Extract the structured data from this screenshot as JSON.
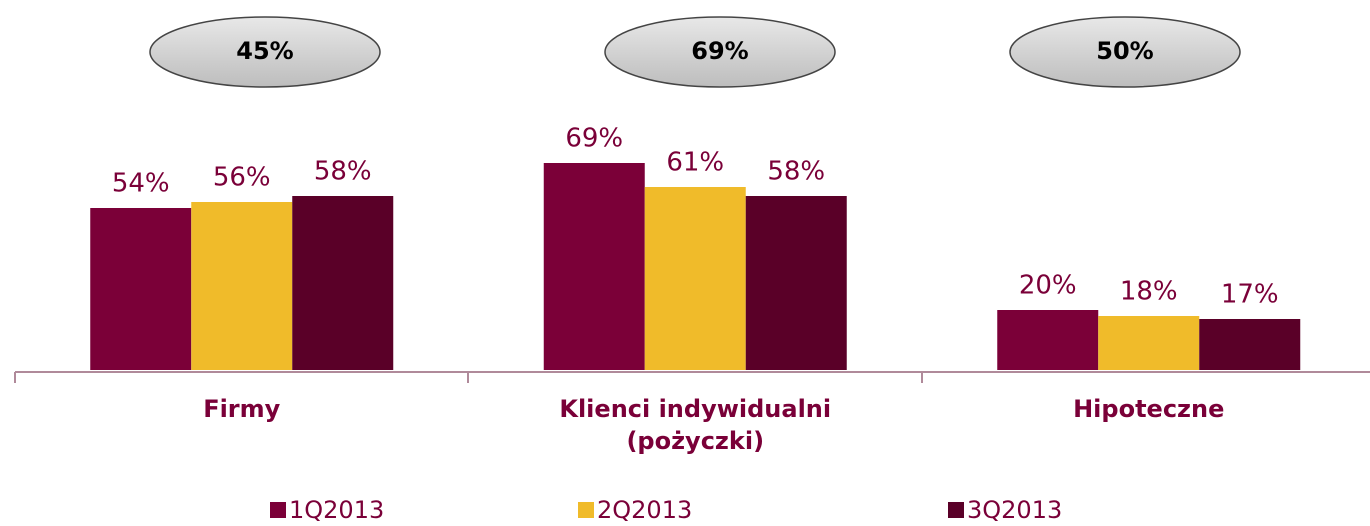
{
  "chart_data": {
    "type": "bar",
    "categories": [
      "Firmy",
      "Klienci indywidualni\n(pożyczki)",
      "Hipoteczne"
    ],
    "series": [
      {
        "name": "1Q2013",
        "color": "#7b0038",
        "values": [
          54,
          69,
          20
        ],
        "value_labels": [
          "54%",
          "69%",
          "20%"
        ]
      },
      {
        "name": "2Q2013",
        "color": "#f0bb2a",
        "values": [
          56,
          61,
          18
        ],
        "value_labels": [
          "56%",
          "61%",
          "18%"
        ]
      },
      {
        "name": "3Q2013",
        "color": "#5a0028",
        "values": [
          58,
          58,
          17
        ],
        "value_labels": [
          "58%",
          "58%",
          "17%"
        ]
      }
    ],
    "annotations": [
      "45%",
      "69%",
      "50%"
    ]
  }
}
